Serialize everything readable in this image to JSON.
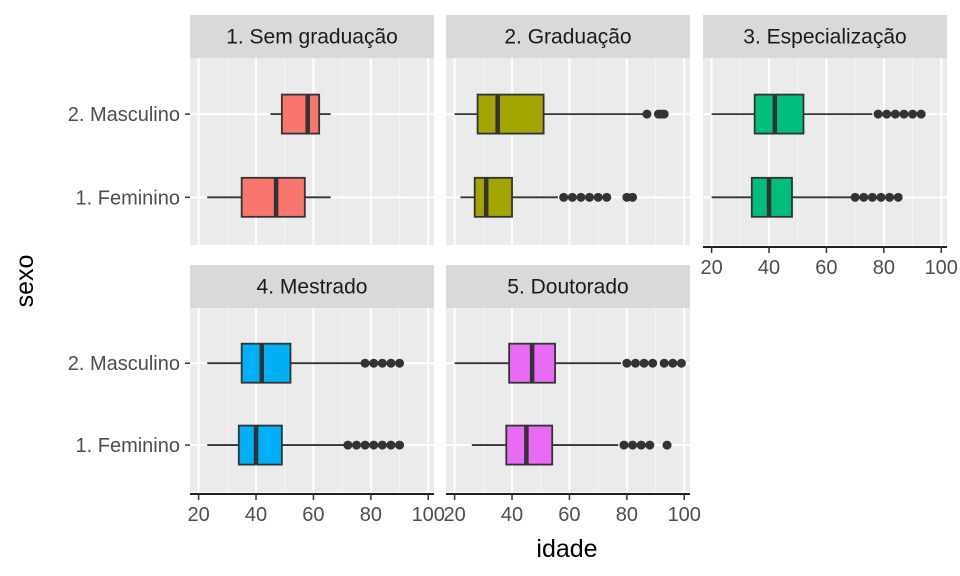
{
  "chart_data": {
    "type": "boxplot",
    "orientation": "horizontal",
    "xlabel": "idade",
    "ylabel": "sexo",
    "xlim": [
      17,
      102
    ],
    "x_ticks": [
      20,
      40,
      60,
      80,
      100
    ],
    "categories": [
      "2. Masculino",
      "1. Feminino"
    ],
    "grid": true,
    "legend": "none",
    "panels": [
      {
        "title": "1. Sem graduação",
        "color": "#F8766D",
        "boxes": [
          {
            "sexo": "2. Masculino",
            "whisker_low": 45,
            "q1": 49,
            "median": 58,
            "q3": 62,
            "whisker_high": 66,
            "outliers": []
          },
          {
            "sexo": "1. Feminino",
            "whisker_low": 23,
            "q1": 35,
            "median": 47,
            "q3": 57,
            "whisker_high": 66,
            "outliers": []
          }
        ]
      },
      {
        "title": "2. Graduação",
        "color": "#A3A500",
        "boxes": [
          {
            "sexo": "2. Masculino",
            "whisker_low": 20,
            "q1": 28,
            "median": 35,
            "q3": 51,
            "whisker_high": 86,
            "outliers": [
              87,
              91,
              92,
              93
            ]
          },
          {
            "sexo": "1. Feminino",
            "whisker_low": 22,
            "q1": 27,
            "median": 31,
            "q3": 40,
            "whisker_high": 56,
            "outliers": [
              58,
              61,
              64,
              67,
              70,
              73,
              80,
              82
            ]
          }
        ]
      },
      {
        "title": "3. Especialização",
        "color": "#00BF7D",
        "boxes": [
          {
            "sexo": "2. Masculino",
            "whisker_low": 20,
            "q1": 35,
            "median": 42,
            "q3": 52,
            "whisker_high": 76,
            "outliers": [
              78,
              81,
              84,
              87,
              90,
              93
            ]
          },
          {
            "sexo": "1. Feminino",
            "whisker_low": 20,
            "q1": 34,
            "median": 40,
            "q3": 48,
            "whisker_high": 69,
            "outliers": [
              70,
              73,
              76,
              79,
              82,
              85
            ]
          }
        ]
      },
      {
        "title": "4. Mestrado",
        "color": "#00B0F6",
        "boxes": [
          {
            "sexo": "2. Masculino",
            "whisker_low": 23,
            "q1": 35,
            "median": 42,
            "q3": 52,
            "whisker_high": 77,
            "outliers": [
              78,
              81,
              84,
              87,
              90
            ]
          },
          {
            "sexo": "1. Feminino",
            "whisker_low": 23,
            "q1": 34,
            "median": 40,
            "q3": 49,
            "whisker_high": 71,
            "outliers": [
              72,
              75,
              78,
              81,
              84,
              87,
              90
            ]
          }
        ]
      },
      {
        "title": "5. Doutorado",
        "color": "#E76BF3",
        "boxes": [
          {
            "sexo": "2. Masculino",
            "whisker_low": 20,
            "q1": 39,
            "median": 47,
            "q3": 55,
            "whisker_high": 78,
            "outliers": [
              80,
              83,
              86,
              89,
              93,
              96,
              99
            ]
          },
          {
            "sexo": "1. Feminino",
            "whisker_low": 26,
            "q1": 38,
            "median": 45,
            "q3": 54,
            "whisker_high": 77,
            "outliers": [
              79,
              82,
              85,
              88,
              94
            ]
          }
        ]
      }
    ]
  }
}
